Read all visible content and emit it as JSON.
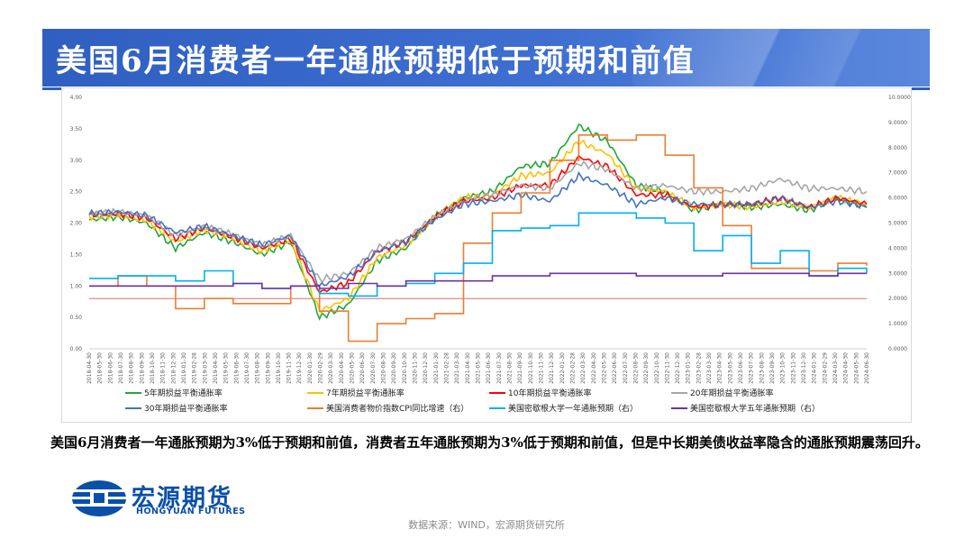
{
  "title": "美国6月消费者一年通胀预期低于预期和前值",
  "caption": "美国6月消费者一年通胀预期为3%低于预期和前值，消费者五年通胀预期为3%低于预期和前值，但是中长期美债收益率隐含的通胀预期震荡回升。",
  "logo": {
    "cn": "宏源期货",
    "en": "HONGYUAN FUTURES"
  },
  "source": "数据来源：WIND，宏源期货研究所",
  "colors": {
    "title_bar": "#2f5fc0",
    "logo_blue": "#0a4fa8",
    "baseline": "#e46c6c"
  },
  "chart_data": {
    "type": "line",
    "left_axis": {
      "ylim": [
        0,
        4
      ],
      "ticks": [
        "0.00",
        "0.50",
        "1.00",
        "1.50",
        "2.00",
        "2.50",
        "3.00",
        "3.50",
        "4.00"
      ]
    },
    "right_axis": {
      "ylim": [
        0,
        10
      ],
      "ticks": [
        "0.0000",
        "1.0000",
        "2.0000",
        "3.0000",
        "4.0000",
        "5.0000",
        "6.0000",
        "7.0000",
        "8.0000",
        "9.0000",
        "10.0000"
      ]
    },
    "x_tick_labels": [
      "2018-04-30",
      "2018-05-30",
      "2018-06-30",
      "2018-07-30",
      "2018-08-30",
      "2018-09-30",
      "2018-10-30",
      "2018-11-30",
      "2018-12-30",
      "2019-01-30",
      "2019-02-28",
      "2019-03-30",
      "2019-04-30",
      "2019-05-30",
      "2019-06-30",
      "2019-07-30",
      "2019-08-30",
      "2019-09-30",
      "2019-10-30",
      "2019-11-30",
      "2019-12-30",
      "2020-01-30",
      "2020-02-29",
      "2020-03-30",
      "2020-04-30",
      "2020-05-30",
      "2020-06-30",
      "2020-07-30",
      "2020-08-30",
      "2020-09-30",
      "2020-10-30",
      "2020-11-30",
      "2020-12-30",
      "2021-01-30",
      "2021-02-28",
      "2021-03-30",
      "2021-04-30",
      "2021-05-30",
      "2021-06-30",
      "2021-07-30",
      "2021-08-30",
      "2021-09-30",
      "2021-10-30",
      "2021-11-30",
      "2021-12-30",
      "2022-01-30",
      "2022-02-28",
      "2022-03-30",
      "2022-04-30",
      "2022-05-30",
      "2022-06-30",
      "2022-07-30",
      "2022-08-30",
      "2022-09-30",
      "2022-10-30",
      "2022-11-30",
      "2022-12-30",
      "2023-01-30",
      "2023-02-28",
      "2023-03-30",
      "2023-04-30",
      "2023-05-30",
      "2023-06-30",
      "2023-07-30",
      "2023-08-30",
      "2023-09-30",
      "2023-10-30",
      "2023-11-30",
      "2023-12-30",
      "2024-01-30",
      "2024-02-29",
      "2024-03-30",
      "2024-04-30",
      "2024-05-30",
      "2024-06-30"
    ],
    "x_points": [
      "2018-04",
      "2018-07",
      "2018-10",
      "2019-01",
      "2019-04",
      "2019-07",
      "2019-10",
      "2020-01",
      "2020-03",
      "2020-04",
      "2020-07",
      "2020-10",
      "2021-01",
      "2021-04",
      "2021-07",
      "2021-10",
      "2022-01",
      "2022-03",
      "2022-04",
      "2022-07",
      "2022-10",
      "2023-01",
      "2023-04",
      "2023-07",
      "2023-10",
      "2024-01",
      "2024-04",
      "2024-06"
    ],
    "series": [
      {
        "name": "5年期损益平衡通胀率",
        "axis": "left",
        "color": "#22a63a",
        "values": [
          2.05,
          2.1,
          2.0,
          1.6,
          1.85,
          1.7,
          1.5,
          1.7,
          0.5,
          0.7,
          1.4,
          1.6,
          2.1,
          2.4,
          2.5,
          2.9,
          2.95,
          3.55,
          3.3,
          2.6,
          2.5,
          2.2,
          2.3,
          2.25,
          2.3,
          2.2,
          2.4,
          2.25
        ]
      },
      {
        "name": "7年期损益平衡通胀率",
        "axis": "left",
        "color": "#ffc000",
        "values": [
          2.1,
          2.12,
          2.05,
          1.7,
          1.9,
          1.75,
          1.55,
          1.72,
          0.6,
          0.8,
          1.45,
          1.65,
          2.1,
          2.4,
          2.45,
          2.75,
          2.8,
          3.3,
          3.1,
          2.55,
          2.5,
          2.25,
          2.3,
          2.25,
          2.35,
          2.25,
          2.4,
          2.3
        ]
      },
      {
        "name": "10年期损益平衡通胀率",
        "axis": "left",
        "color": "#ff0000",
        "values": [
          2.12,
          2.15,
          2.08,
          1.75,
          1.92,
          1.78,
          1.6,
          1.75,
          0.9,
          1.05,
          1.55,
          1.7,
          2.1,
          2.35,
          2.4,
          2.6,
          2.6,
          3.05,
          2.9,
          2.45,
          2.45,
          2.25,
          2.3,
          2.3,
          2.4,
          2.25,
          2.4,
          2.3
        ]
      },
      {
        "name": "20年期损益平衡通胀率",
        "axis": "left",
        "color": "#a6a6a6",
        "values": [
          2.15,
          2.18,
          2.12,
          1.8,
          1.95,
          1.82,
          1.65,
          1.8,
          1.1,
          1.2,
          1.6,
          1.75,
          2.1,
          2.35,
          2.45,
          2.6,
          2.55,
          2.95,
          2.85,
          2.55,
          2.6,
          2.5,
          2.5,
          2.55,
          2.7,
          2.55,
          2.55,
          2.5
        ]
      },
      {
        "name": "30年期损益平衡通胀率",
        "axis": "left",
        "color": "#4472c4",
        "values": [
          2.15,
          2.18,
          2.12,
          1.85,
          1.95,
          1.8,
          1.65,
          1.8,
          1.0,
          1.15,
          1.55,
          1.7,
          2.05,
          2.3,
          2.35,
          2.45,
          2.35,
          2.75,
          2.6,
          2.3,
          2.4,
          2.3,
          2.3,
          2.3,
          2.4,
          2.25,
          2.35,
          2.25
        ]
      },
      {
        "name": "美国消费者物价指数CPI同比增速（右）",
        "axis": "right",
        "color": "#ed7d31",
        "values": [
          2.5,
          2.9,
          2.5,
          1.6,
          2.0,
          1.8,
          1.8,
          2.5,
          1.5,
          0.3,
          1.0,
          1.2,
          1.4,
          4.2,
          5.4,
          6.2,
          7.5,
          8.5,
          8.3,
          8.5,
          7.7,
          6.4,
          4.9,
          3.2,
          3.2,
          3.1,
          3.4,
          3.3
        ]
      },
      {
        "name": "美国密歇根大学一年通胀预期（右）",
        "axis": "right",
        "color": "#00b0f0",
        "values": [
          2.8,
          2.9,
          2.9,
          2.7,
          3.1,
          2.6,
          2.4,
          2.5,
          2.2,
          2.1,
          2.5,
          2.6,
          3.0,
          3.4,
          4.7,
          4.8,
          4.9,
          5.4,
          5.4,
          5.2,
          5.0,
          3.9,
          4.5,
          3.4,
          3.9,
          2.9,
          3.2,
          3.0
        ]
      },
      {
        "name": "美国密歇根大学五年通胀预期（右）",
        "axis": "right",
        "color": "#7030a0",
        "values": [
          2.5,
          2.5,
          2.5,
          2.5,
          2.5,
          2.6,
          2.4,
          2.5,
          2.4,
          2.6,
          2.5,
          2.7,
          2.7,
          2.7,
          2.9,
          2.9,
          3.0,
          3.0,
          3.0,
          2.9,
          2.9,
          2.9,
          3.0,
          3.0,
          3.0,
          2.9,
          3.0,
          3.0
        ]
      }
    ]
  }
}
